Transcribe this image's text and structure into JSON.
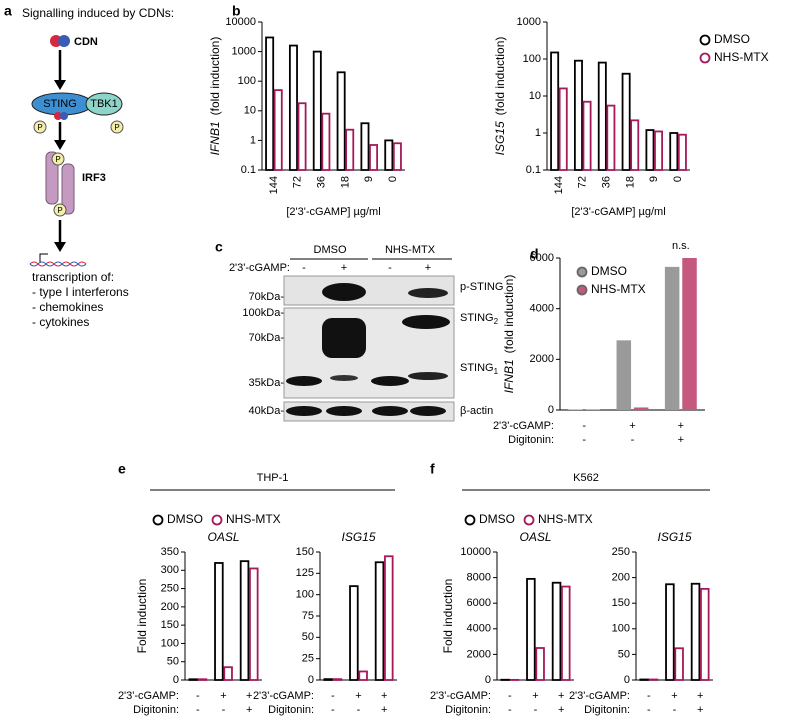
{
  "diagram": {
    "panel": "a",
    "title": "Signalling induced by CDNs:",
    "ligand": "CDN",
    "sting": "STING",
    "tbk1": "TBK1",
    "irf3": "IRF3",
    "phospho": "P",
    "outcome": "transcription of:",
    "outcomes": [
      "- type I interferons",
      "- chemokines",
      "- cytokines"
    ]
  },
  "blot": {
    "panel": "c",
    "groups": [
      "DMSO",
      "NHS-MTX"
    ],
    "treatment_label": "2'3'-cGAMP:",
    "signs": [
      "-",
      "+",
      "-",
      "+"
    ],
    "markers": [
      "70kDa-",
      "100kDa-",
      "70kDa-",
      "35kDa-",
      "40kDa-"
    ],
    "bands": [
      {
        "name": "p-STING"
      },
      {
        "name": "STING",
        "sub": "2"
      },
      {
        "name": "STING",
        "sub": "1"
      },
      {
        "name": "β-actin"
      }
    ]
  },
  "chart_data": [
    {
      "type": "bar",
      "panel": "b",
      "log_scale": true,
      "filled": false,
      "legend_layout": "vertical",
      "categories": [
        "144",
        "72",
        "36",
        "18",
        "9",
        "0"
      ],
      "xlabel": "[2'3'-cGAMP] µg/ml",
      "series": [
        {
          "name": "DMSO",
          "color": "#000000"
        },
        {
          "name": "NHS-MTX",
          "color": "#a3195b"
        }
      ],
      "subplots": [
        {
          "ylabel_gene": "IFNB1",
          "ylabel": "(fold induction)",
          "ylim": [
            0.1,
            10000
          ],
          "yticks": [
            0.1,
            1,
            10,
            100,
            1000,
            10000
          ],
          "values": [
            [
              3000,
              1600,
              1000,
              200,
              3.8,
              1.0
            ],
            [
              50,
              18,
              8,
              2.3,
              0.7,
              0.8
            ]
          ]
        },
        {
          "ylabel_gene": "ISG15",
          "ylabel": "(fold induction)",
          "ylim": [
            0.1,
            1000
          ],
          "yticks": [
            0.1,
            1,
            10,
            100,
            1000
          ],
          "values": [
            [
              150,
              90,
              80,
              40,
              1.2,
              1.0
            ],
            [
              16,
              7,
              5.5,
              2.2,
              1.1,
              0.9
            ]
          ]
        }
      ]
    },
    {
      "type": "bar",
      "panel": "d",
      "log_scale": false,
      "filled": true,
      "legend_layout": "vertical",
      "annotation": "n.s.",
      "categories": [
        null,
        null,
        null
      ],
      "series": [
        {
          "name": "DMSO",
          "color": "#9a9a9a"
        },
        {
          "name": "NHS-MTX",
          "color": "#c4587f"
        }
      ],
      "subplots": [
        {
          "ylabel_gene": "IFNB1",
          "ylabel": "(fold induction)",
          "ylim": [
            0,
            6000
          ],
          "yticks": [
            0,
            2000,
            4000,
            6000
          ],
          "values": [
            [
              20,
              2750,
              5650
            ],
            [
              20,
              100,
              6000
            ]
          ],
          "x_table": [
            {
              "label": "2'3'-cGAMP:",
              "signs": [
                "-",
                "+",
                "+"
              ]
            },
            {
              "label": "Digitonin:",
              "signs": [
                "-",
                "-",
                "+"
              ]
            }
          ]
        }
      ]
    },
    {
      "type": "bar",
      "panel": "e",
      "group_title": "THP-1",
      "log_scale": false,
      "filled": false,
      "legend_layout": "horizontal",
      "categories": [
        null,
        null,
        null
      ],
      "series": [
        {
          "name": "DMSO",
          "color": "#000000"
        },
        {
          "name": "NHS-MTX",
          "color": "#a3195b"
        }
      ],
      "subplots": [
        {
          "title": "OASL",
          "ylabel": "Fold induction",
          "ylim": [
            0,
            350
          ],
          "yticks": [
            0,
            50,
            100,
            150,
            200,
            250,
            300,
            350
          ],
          "values": [
            [
              2,
              320,
              325
            ],
            [
              2,
              35,
              305
            ]
          ],
          "x_table": [
            {
              "label": "2'3'-cGAMP:",
              "signs": [
                "-",
                "+",
                "+"
              ]
            },
            {
              "label": "Digitonin:",
              "signs": [
                "-",
                "-",
                "+"
              ]
            }
          ]
        },
        {
          "title": "ISG15",
          "ylim": [
            0,
            150
          ],
          "yticks": [
            0,
            25,
            50,
            75,
            100,
            125,
            150
          ],
          "values": [
            [
              1,
              110,
              138
            ],
            [
              1,
              10,
              145
            ]
          ],
          "x_table": [
            {
              "label": "2'3'-cGAMP:",
              "signs": [
                "-",
                "+",
                "+"
              ]
            },
            {
              "label": "Digitonin:",
              "signs": [
                "-",
                "-",
                "+"
              ]
            }
          ]
        }
      ]
    },
    {
      "type": "bar",
      "panel": "f",
      "group_title": "K562",
      "log_scale": false,
      "filled": false,
      "legend_layout": "horizontal",
      "categories": [
        null,
        null,
        null
      ],
      "series": [
        {
          "name": "DMSO",
          "color": "#000000"
        },
        {
          "name": "NHS-MTX",
          "color": "#a3195b"
        }
      ],
      "subplots": [
        {
          "title": "OASL",
          "ylabel": "Fold induction",
          "ylim": [
            0,
            10000
          ],
          "yticks": [
            0,
            2000,
            4000,
            6000,
            8000,
            10000
          ],
          "values": [
            [
              20,
              7900,
              7600
            ],
            [
              10,
              2500,
              7300
            ]
          ],
          "x_table": [
            {
              "label": "2'3'-cGAMP:",
              "signs": [
                "-",
                "+",
                "+"
              ]
            },
            {
              "label": "Digitonin:",
              "signs": [
                "-",
                "-",
                "+"
              ]
            }
          ]
        },
        {
          "title": "ISG15",
          "ylim": [
            0,
            250
          ],
          "yticks": [
            0,
            50,
            100,
            150,
            200,
            250
          ],
          "values": [
            [
              1,
              187,
              188
            ],
            [
              1,
              62,
              178
            ]
          ],
          "x_table": [
            {
              "label": "2'3'-cGAMP:",
              "signs": [
                "-",
                "+",
                "+"
              ]
            },
            {
              "label": "Digitonin:",
              "signs": [
                "-",
                "-",
                "+"
              ]
            }
          ]
        }
      ]
    }
  ]
}
